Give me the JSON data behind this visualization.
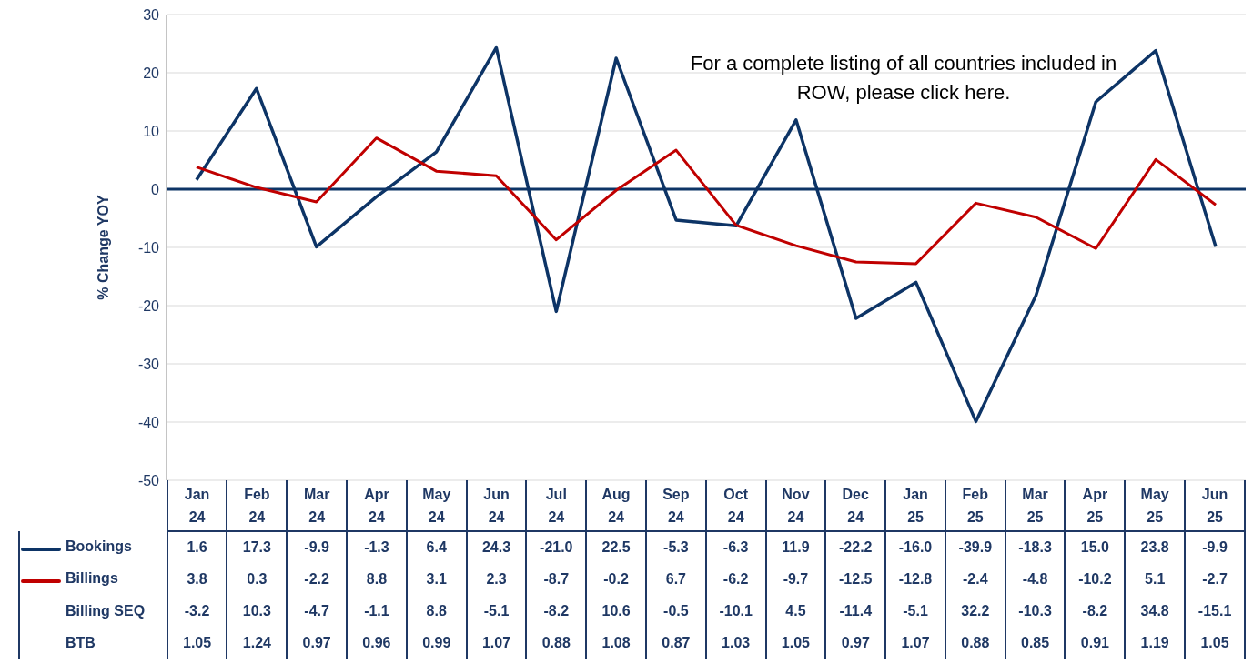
{
  "chart_data": {
    "type": "line",
    "ylabel": "% Change YOY",
    "categories": [
      "Jan 24",
      "Feb 24",
      "Mar 24",
      "Apr 24",
      "May 24",
      "Jun 24",
      "Jul 24",
      "Aug 24",
      "Sep 24",
      "Oct 24",
      "Nov 24",
      "Dec 24",
      "Jan 25",
      "Feb 25",
      "Mar 25",
      "Apr 25",
      "May 25",
      "Jun 25"
    ],
    "series": [
      {
        "name": "Bookings",
        "color": "#0d3466",
        "values": [
          1.6,
          17.3,
          -9.9,
          -1.3,
          6.4,
          24.3,
          -21.0,
          22.5,
          -5.3,
          -6.3,
          11.9,
          -22.2,
          -16.0,
          -39.9,
          -18.3,
          15.0,
          23.8,
          -9.9
        ],
        "value_labels": [
          "1.6",
          "17.3",
          "-9.9",
          "-1.3",
          "6.4",
          "24.3",
          "-21.0",
          "22.5",
          "-5.3",
          "-6.3",
          "11.9",
          "-22.2",
          "-16.0",
          "-39.9",
          "-18.3",
          "15.0",
          "23.8",
          "-9.9"
        ]
      },
      {
        "name": "Billings",
        "color": "#c00000",
        "values": [
          3.8,
          0.3,
          -2.2,
          8.8,
          3.1,
          2.3,
          -8.7,
          -0.2,
          6.7,
          -6.2,
          -9.7,
          -12.5,
          -12.8,
          -2.4,
          -4.8,
          -10.2,
          5.1,
          -2.7
        ],
        "value_labels": [
          "3.8",
          "0.3",
          "-2.2",
          "8.8",
          "3.1",
          "2.3",
          "-8.7",
          "-0.2",
          "6.7",
          "-6.2",
          "-9.7",
          "-12.5",
          "-12.8",
          "-2.4",
          "-4.8",
          "-10.2",
          "5.1",
          "-2.7"
        ]
      },
      {
        "name": "Billing SEQ",
        "values": [
          null,
          null,
          null,
          null,
          null,
          null,
          null,
          null,
          null,
          null,
          null,
          null,
          null,
          null,
          null,
          null,
          null,
          null
        ],
        "value_labels": [
          "-3.2",
          "10.3",
          "-4.7",
          "-1.1",
          "8.8",
          "-5.1",
          "-8.2",
          "10.6",
          "-0.5",
          "-10.1",
          "4.5",
          "-11.4",
          "-5.1",
          "32.2",
          "-10.3",
          "-8.2",
          "34.8",
          "-15.1"
        ]
      },
      {
        "name": "BTB",
        "values": [
          null,
          null,
          null,
          null,
          null,
          null,
          null,
          null,
          null,
          null,
          null,
          null,
          null,
          null,
          null,
          null,
          null,
          null
        ],
        "value_labels": [
          "1.05",
          "1.24",
          "0.97",
          "0.96",
          "0.99",
          "1.07",
          "0.88",
          "1.08",
          "0.87",
          "1.03",
          "1.05",
          "0.97",
          "1.07",
          "0.88",
          "0.85",
          "0.91",
          "1.19",
          "1.05"
        ]
      }
    ],
    "data_labels": true,
    "legend": "bottom left",
    "ylim": [
      -50,
      30
    ],
    "yticks": [
      -50,
      -40,
      -30,
      -20,
      -10,
      0,
      10,
      20,
      30
    ],
    "grid": "y",
    "ref_lines": [
      {
        "axis": "y",
        "value": 0,
        "color": "#0d3466"
      }
    ],
    "annotations": [
      "For a complete listing of all countries included in ROW, please click here."
    ]
  }
}
